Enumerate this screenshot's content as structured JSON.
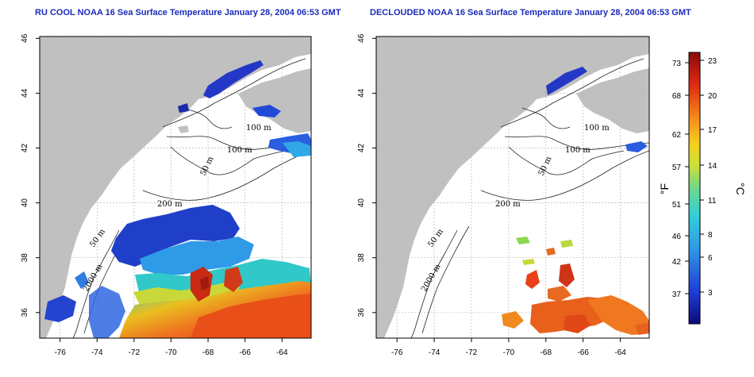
{
  "titles": {
    "left": "RU COOL NOAA 16 Sea Surface Temperature January 28, 2004 06:53 GMT",
    "right": "DECLOUDED NOAA 16 Sea Surface Temperature January 28, 2004 06:53 GMT"
  },
  "map": {
    "lon_ticks": [
      "-76",
      "-74",
      "-72",
      "-70",
      "-68",
      "-66",
      "-64"
    ],
    "lat_ticks": [
      "36",
      "38",
      "40",
      "42",
      "44",
      "46"
    ],
    "contour_labels": [
      "100 m",
      "100 m",
      "50 m",
      "200 m",
      "50 m",
      "2000 m"
    ],
    "colors": {
      "land": "#c0c0c0",
      "ocean": "#ffffff",
      "grid": "#b8b8b8",
      "title": "#1a2bb8"
    }
  },
  "colorbar": {
    "fahrenheit_ticks": [
      "73",
      "68",
      "62",
      "57",
      "51",
      "46",
      "42",
      "37"
    ],
    "celsius_ticks": [
      "23",
      "20",
      "17",
      "14",
      "11",
      "8",
      "6",
      "3"
    ],
    "fahrenheit_unit": "°F",
    "celsius_unit": "°C"
  }
}
